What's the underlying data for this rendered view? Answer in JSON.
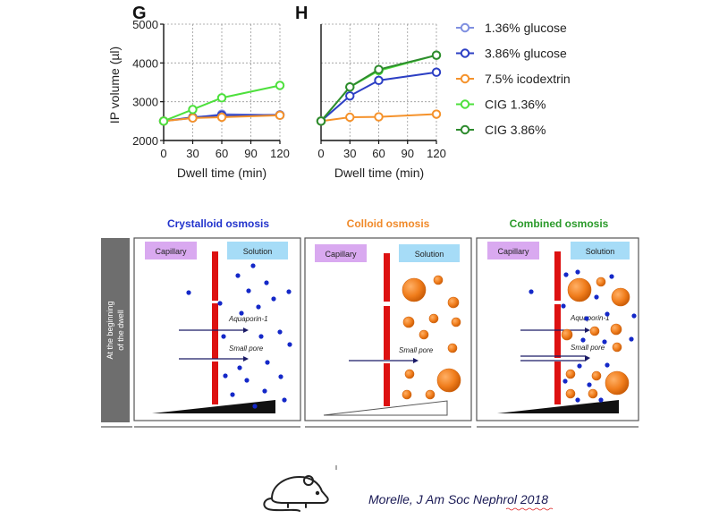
{
  "chart_data": [
    {
      "panel": "G",
      "type": "line",
      "title": "",
      "xlabel": "Dwell time (min)",
      "ylabel": "IP volume (µl)",
      "x": [
        0,
        30,
        60,
        120
      ],
      "xticks": [
        "0",
        "30",
        "60",
        "90",
        "120"
      ],
      "yticks": [
        "2000",
        "3000",
        "4000",
        "5000"
      ],
      "xlim": [
        0,
        120
      ],
      "ylim": [
        2000,
        5000
      ],
      "grid": true,
      "series": [
        {
          "name": "1.36% glucose",
          "color": "#7f8fe0",
          "values": [
            2500,
            2580,
            2680,
            2650
          ]
        },
        {
          "name": "3.86% glucose",
          "color": "#2c3fc4",
          "values": [
            2500,
            2600,
            2650,
            2660
          ]
        },
        {
          "name": "7.5% icodextrin",
          "color": "#f5922b",
          "values": [
            2500,
            2580,
            2600,
            2650
          ]
        },
        {
          "name": "CIG 1.36%",
          "color": "#4de03c",
          "values": [
            2500,
            2800,
            3100,
            3420
          ]
        }
      ]
    },
    {
      "panel": "H",
      "type": "line",
      "title": "",
      "xlabel": "Dwell time (min)",
      "ylabel": "",
      "x": [
        0,
        30,
        60,
        120
      ],
      "xticks": [
        "0",
        "30",
        "60",
        "90",
        "120"
      ],
      "yticks": [],
      "xlim": [
        0,
        120
      ],
      "ylim": [
        2000,
        5000
      ],
      "grid": true,
      "series": [
        {
          "name": "3.86% glucose",
          "color": "#2c3fc4",
          "values": [
            2500,
            3150,
            3550,
            3760
          ]
        },
        {
          "name": "7.5% icodextrin",
          "color": "#f5922b",
          "values": [
            2500,
            2600,
            2610,
            2680
          ]
        },
        {
          "name": "CIG 1.36%",
          "color": "#4de03c",
          "values": [
            2500,
            3380,
            3800,
            4200
          ]
        },
        {
          "name": "CIG 3.86%",
          "color": "#2e8b2e",
          "values": [
            2500,
            3380,
            3830,
            4200
          ]
        }
      ]
    }
  ],
  "legend": [
    {
      "name": "1.36% glucose",
      "color": "#7f8fe0"
    },
    {
      "name": "3.86% glucose",
      "color": "#2c3fc4"
    },
    {
      "name": "7.5% icodextrin",
      "color": "#f5922b"
    },
    {
      "name": "CIG 1.36%",
      "color": "#4de03c"
    },
    {
      "name": "CIG 3.86%",
      "color": "#2e8b2e"
    }
  ],
  "diagram": {
    "side_label_line1": "At the beginning",
    "side_label_line2": "of the dwell",
    "capillary_label": "Capillary",
    "solution_label": "Solution",
    "aquaporin_label": "Aquaporin-1",
    "small_pore_label": "Small pore",
    "panels": [
      {
        "title": "Crystalloid osmosis",
        "title_color": "#2233cc"
      },
      {
        "title": "Colloid osmosis",
        "title_color": "#f08a2a"
      },
      {
        "title": "Combined osmosis",
        "title_color": "#2a9a2a"
      }
    ]
  },
  "citation": "Morelle, J Am Soc Nephrol 2018",
  "icon": "mouse-icon"
}
